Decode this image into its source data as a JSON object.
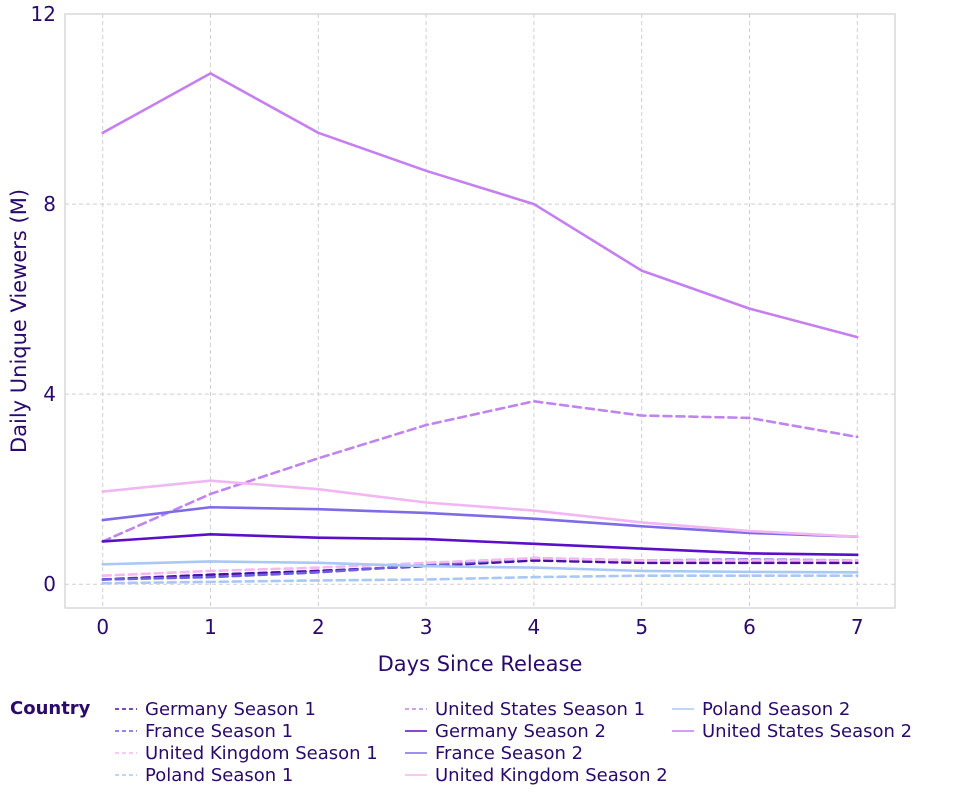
{
  "chart_data": {
    "type": "line",
    "xlabel": "Days Since Release",
    "ylabel": "Daily Unique Viewers (M)",
    "x": [
      0,
      1,
      2,
      3,
      4,
      5,
      6,
      7
    ],
    "xlim": [
      -0.35,
      7.35
    ],
    "ylim": [
      -0.5,
      12
    ],
    "yticks": [
      0,
      4,
      8,
      12
    ],
    "grid": true,
    "legend_title": "Country",
    "legend_position": "bottom",
    "series": [
      {
        "name": "Germany Season 1",
        "color": "#4b0fa8",
        "dash": "dashed",
        "values": [
          0.1,
          0.2,
          0.28,
          0.38,
          0.5,
          0.45,
          0.45,
          0.45
        ]
      },
      {
        "name": "France Season 1",
        "color": "#6d5fe0",
        "dash": "dashed",
        "values": [
          0.1,
          0.15,
          0.25,
          0.4,
          0.55,
          0.5,
          0.52,
          0.5
        ]
      },
      {
        "name": "United Kingdom Season 1",
        "color": "#f5b8f0",
        "dash": "dashed",
        "values": [
          0.18,
          0.28,
          0.35,
          0.45,
          0.55,
          0.5,
          0.5,
          0.5
        ]
      },
      {
        "name": "Poland Season 1",
        "color": "#a9c8f5",
        "dash": "dashed",
        "values": [
          0.02,
          0.05,
          0.08,
          0.1,
          0.15,
          0.18,
          0.18,
          0.18
        ]
      },
      {
        "name": "United States Season 1",
        "color": "#c084ef",
        "dash": "dashed",
        "values": [
          0.9,
          1.9,
          2.65,
          3.35,
          3.85,
          3.55,
          3.5,
          3.1
        ]
      },
      {
        "name": "Germany Season 2",
        "color": "#5c0fc9",
        "dash": "solid",
        "values": [
          0.9,
          1.05,
          0.98,
          0.95,
          0.85,
          0.75,
          0.65,
          0.62
        ]
      },
      {
        "name": "France Season 2",
        "color": "#7d6be8",
        "dash": "solid",
        "values": [
          1.35,
          1.62,
          1.58,
          1.5,
          1.38,
          1.22,
          1.08,
          1.0
        ]
      },
      {
        "name": "United Kingdom Season 2",
        "color": "#f2b6f2",
        "dash": "solid",
        "values": [
          1.95,
          2.18,
          2.0,
          1.72,
          1.55,
          1.3,
          1.12,
          1.0
        ]
      },
      {
        "name": "Poland Season 2",
        "color": "#a9c8f5",
        "dash": "solid",
        "values": [
          0.42,
          0.48,
          0.45,
          0.38,
          0.35,
          0.28,
          0.26,
          0.25
        ]
      },
      {
        "name": "United States Season 2",
        "color": "#c57ff0",
        "dash": "solid",
        "values": [
          9.5,
          10.75,
          9.5,
          8.7,
          8.0,
          6.6,
          5.8,
          5.2
        ]
      }
    ]
  }
}
